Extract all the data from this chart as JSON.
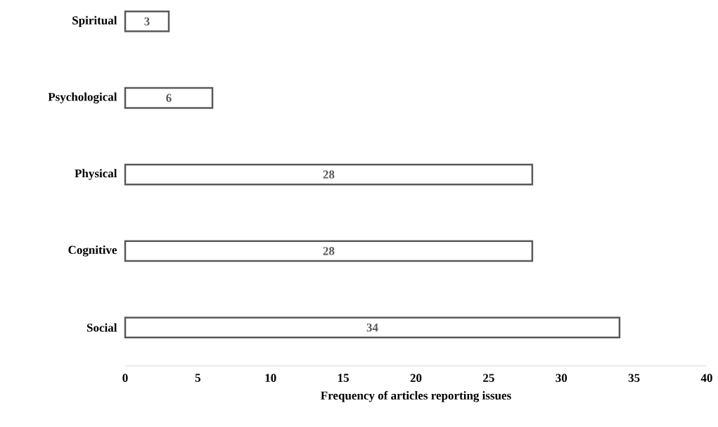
{
  "chart_data": {
    "type": "bar",
    "orientation": "horizontal",
    "categories": [
      "Spiritual",
      "Psychological",
      "Physical",
      "Cognitive",
      "Social"
    ],
    "values": [
      3,
      6,
      28,
      28,
      34
    ],
    "color": "#595959",
    "xlim": [
      0,
      40
    ],
    "xticks": [
      0,
      5,
      10,
      15,
      20,
      25,
      30,
      35,
      40
    ],
    "xlabel": "Frequency of articles reporting issues",
    "data_labels": true
  }
}
